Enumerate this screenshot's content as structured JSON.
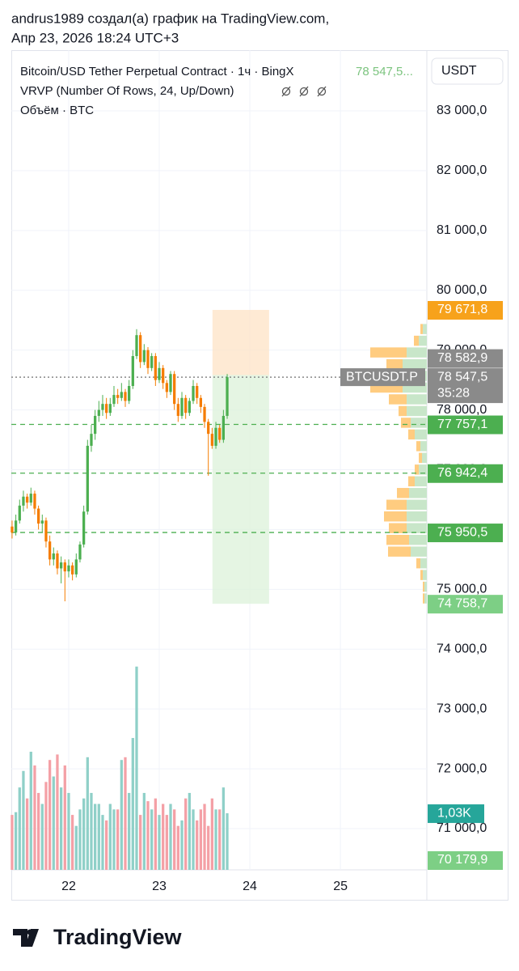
{
  "header": {
    "line1": "andrus1989 создал(а) график на TradingView.com,",
    "line2": "Апр 23, 2026 18:24 UTC+3"
  },
  "footer": {
    "brand": "TradingView"
  },
  "chart_data": {
    "type": "candlestick",
    "title": "Bitcoin/USD Tether Perpetual Contract · 1ч · BingX",
    "legend_price": "78 547,5...",
    "indicator_vrvp": "VRVP (Number Of Rows, 24, Up/Down)",
    "indicator_volume": "Объём · BTC",
    "currency": "USDT",
    "up_color": "#4caf50",
    "down_color": "#f57c00",
    "volume_up_color": "#8fd0c8",
    "volume_down_color": "#f4a0a6",
    "x": [
      -15,
      -14,
      -13,
      -12,
      -11,
      -10,
      -9,
      -8,
      -7,
      -6,
      -5,
      -4,
      -3,
      -2,
      -1,
      0,
      1,
      2,
      3,
      4,
      5,
      6,
      7,
      8,
      9,
      10,
      11,
      12,
      13,
      14,
      15,
      16,
      17,
      18,
      19,
      20,
      21,
      22,
      23,
      24,
      25,
      26,
      27,
      28,
      29,
      30,
      31,
      32,
      33,
      34,
      35,
      36,
      37,
      38,
      39,
      40,
      41,
      42
    ],
    "open": [
      76050,
      75950,
      76150,
      76400,
      76550,
      76450,
      76600,
      76350,
      76100,
      76150,
      75800,
      75500,
      75600,
      75350,
      75450,
      75300,
      75400,
      75250,
      75500,
      75750,
      76300,
      77400,
      77600,
      77900,
      78000,
      78100,
      77950,
      78100,
      78250,
      78200,
      78300,
      78150,
      78400,
      78900,
      79250,
      78800,
      79000,
      78700,
      78900,
      78500,
      78700,
      78450,
      78300,
      78600,
      78100,
      77900,
      78200,
      77950,
      78150,
      78400,
      78200,
      78050,
      77800,
      77600,
      77400,
      77700,
      77500,
      77900
    ],
    "high": [
      76150,
      76250,
      76500,
      76650,
      76600,
      76700,
      76650,
      76400,
      76250,
      76200,
      75900,
      75700,
      75650,
      75550,
      75500,
      75500,
      75450,
      75600,
      75800,
      76400,
      77500,
      77750,
      78000,
      78150,
      78250,
      78200,
      78200,
      78400,
      78350,
      78450,
      78350,
      78500,
      79000,
      79350,
      79300,
      79100,
      79050,
      78950,
      78950,
      78800,
      78750,
      78500,
      78650,
      78650,
      78200,
      78300,
      78250,
      78200,
      78500,
      78450,
      78250,
      78100,
      77850,
      77700,
      77800,
      77750,
      78000,
      78600
    ],
    "low": [
      75850,
      75900,
      76100,
      76300,
      76350,
      76400,
      76250,
      76000,
      75950,
      75700,
      75400,
      75400,
      75250,
      75100,
      74800,
      75200,
      75150,
      75200,
      75450,
      75700,
      76250,
      77300,
      77500,
      77800,
      77900,
      77850,
      77900,
      78050,
      78100,
      78150,
      78050,
      78100,
      78350,
      78850,
      78700,
      78750,
      78600,
      78650,
      78400,
      78450,
      78350,
      78200,
      78250,
      78000,
      77800,
      77850,
      77850,
      77900,
      78100,
      78100,
      77950,
      77700,
      76900,
      77350,
      77350,
      77450,
      77450,
      77850
    ],
    "close": [
      75950,
      76150,
      76400,
      76550,
      76450,
      76600,
      76350,
      76100,
      76150,
      75800,
      75500,
      75600,
      75350,
      75450,
      75300,
      75400,
      75250,
      75500,
      75750,
      76300,
      77400,
      77600,
      77900,
      78000,
      78100,
      77950,
      78100,
      78250,
      78200,
      78300,
      78150,
      78400,
      78900,
      79250,
      78800,
      79000,
      78700,
      78900,
      78500,
      78700,
      78450,
      78300,
      78600,
      78100,
      77900,
      78200,
      77950,
      78150,
      78400,
      78200,
      78050,
      77800,
      77600,
      77400,
      77700,
      77500,
      77900,
      78547.5
    ],
    "volume": [
      1000,
      1050,
      1500,
      1800,
      1300,
      2150,
      1900,
      1400,
      1200,
      1600,
      2000,
      1700,
      2100,
      1500,
      1900,
      1400,
      1000,
      800,
      1100,
      1300,
      2050,
      1400,
      1200,
      1200,
      1000,
      900,
      1200,
      1100,
      1100,
      2000,
      2050,
      1400,
      2400,
      3700,
      1000,
      1400,
      1250,
      1100,
      1300,
      1000,
      1200,
      1000,
      1200,
      1100,
      800,
      900,
      1300,
      1400,
      1100,
      900,
      1100,
      1200,
      800,
      1300,
      1100,
      1100,
      1500,
      1030
    ],
    "xlim": [
      -15.2,
      94.9
    ],
    "xticks": [
      {
        "value": 0,
        "label": "22"
      },
      {
        "value": 24,
        "label": "23"
      },
      {
        "value": 48,
        "label": "24"
      },
      {
        "value": 72,
        "label": "25"
      }
    ],
    "ylim": [
      70310,
      83974
    ],
    "yticks": [
      {
        "value": 71000,
        "label": "71 000,0"
      },
      {
        "value": 72000,
        "label": "72 000,0"
      },
      {
        "value": 73000,
        "label": "73 000,0"
      },
      {
        "value": 74000,
        "label": "74 000,0"
      },
      {
        "value": 75000,
        "label": "75 000,0"
      },
      {
        "value": 76000,
        "label": "76 000,0"
      },
      {
        "value": 77000,
        "label": "77 000,0"
      },
      {
        "value": 78000,
        "label": "78 000,0"
      },
      {
        "value": 79000,
        "label": "79 000,0"
      },
      {
        "value": 80000,
        "label": "80 000,0"
      },
      {
        "value": 81000,
        "label": "81 000,0"
      },
      {
        "value": 82000,
        "label": "82 000,0"
      },
      {
        "value": 83000,
        "label": "83 000,0"
      }
    ],
    "volume_lim": [
      0,
      4050
    ],
    "grid": true,
    "profile": {
      "low": 74750,
      "high": 79450,
      "up_color": "#c8e6c9",
      "down_color": "#ffcc80",
      "up": [
        3,
        3,
        5,
        8,
        20,
        22,
        25,
        25,
        25,
        22,
        15,
        10,
        6,
        8,
        15,
        20,
        25,
        25,
        30,
        30,
        30,
        25,
        10,
        5
      ],
      "down": [
        2,
        2,
        3,
        5,
        28,
        28,
        22,
        28,
        25,
        15,
        8,
        5,
        4,
        5,
        8,
        12,
        10,
        22,
        40,
        28,
        20,
        45,
        6,
        3
      ]
    },
    "position": {
      "top": 79671.8,
      "entry": 78582.9,
      "bottom": 74758.7,
      "x": [
        38.1,
        53.1
      ]
    },
    "last_price": {
      "value": 78547.5,
      "label": "78 547,5",
      "countdown": "35:28",
      "symbol": "BTCUSDT.P",
      "color": "#8a8a8a"
    },
    "alerts": [
      {
        "value": 77757.1,
        "label": "77 757,1"
      },
      {
        "value": 76942.4,
        "label": "76 942,4"
      },
      {
        "value": 75950.5,
        "label": "75 950,5"
      }
    ],
    "alert_color": "#4caf50",
    "tags": [
      {
        "value": 79671.8,
        "label": "79 671,8",
        "color": "#f7a21b"
      },
      {
        "value": 78582.9,
        "label": "78 582,9",
        "color": "#8a8a8a"
      },
      {
        "value": 74758.7,
        "label": "74 758,7",
        "color": "#7dcf85"
      },
      {
        "value": 70179.9,
        "label": "70 179,9",
        "color": "#7dcf85"
      }
    ],
    "volume_tag": {
      "value": 1030,
      "label": "1,03K",
      "color": "#26a69a"
    }
  }
}
